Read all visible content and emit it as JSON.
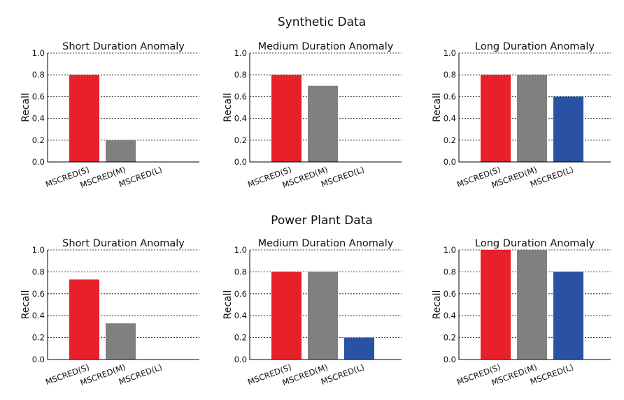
{
  "chart_data": [
    {
      "group_title": "Synthetic Data",
      "panels": [
        {
          "type": "bar",
          "title": "Short Duration Anomaly",
          "ylabel": "Recall",
          "xlabel": "",
          "categories": [
            "MSCRED(S)",
            "MSCRED(M)",
            "MSCRED(L)"
          ],
          "values": [
            0.8,
            0.2,
            0.0
          ],
          "colors": [
            "#e8202a",
            "#808080",
            "#2a52a4"
          ],
          "ylim": [
            0,
            1.0
          ],
          "yticks": [
            "0.0",
            "0.2",
            "0.4",
            "0.6",
            "0.8",
            "1.0"
          ],
          "grid": true
        },
        {
          "type": "bar",
          "title": "Medium Duration Anomaly",
          "ylabel": "Recall",
          "xlabel": "",
          "categories": [
            "MSCRED(S)",
            "MSCRED(M)",
            "MSCRED(L)"
          ],
          "values": [
            0.8,
            0.7,
            0.0
          ],
          "colors": [
            "#e8202a",
            "#808080",
            "#2a52a4"
          ],
          "ylim": [
            0,
            1.0
          ],
          "yticks": [
            "0.0",
            "0.2",
            "0.4",
            "0.6",
            "0.8",
            "1.0"
          ],
          "grid": true
        },
        {
          "type": "bar",
          "title": "Long Duration Anomaly",
          "ylabel": "Recall",
          "xlabel": "",
          "categories": [
            "MSCRED(S)",
            "MSCRED(M)",
            "MSCRED(L)"
          ],
          "values": [
            0.8,
            0.8,
            0.6
          ],
          "colors": [
            "#e8202a",
            "#808080",
            "#2a52a4"
          ],
          "ylim": [
            0,
            1.0
          ],
          "yticks": [
            "0.0",
            "0.2",
            "0.4",
            "0.6",
            "0.8",
            "1.0"
          ],
          "grid": true
        }
      ]
    },
    {
      "group_title": "Power Plant Data",
      "panels": [
        {
          "type": "bar",
          "title": "Short Duration Anomaly",
          "ylabel": "Recall",
          "xlabel": "",
          "categories": [
            "MSCRED(S)",
            "MSCRED(M)",
            "MSCRED(L)"
          ],
          "values": [
            0.73,
            0.33,
            0.0
          ],
          "colors": [
            "#e8202a",
            "#808080",
            "#2a52a4"
          ],
          "ylim": [
            0,
            1.0
          ],
          "yticks": [
            "0.0",
            "0.2",
            "0.4",
            "0.6",
            "0.8",
            "1.0"
          ],
          "grid": true
        },
        {
          "type": "bar",
          "title": "Medium Duration Anomaly",
          "ylabel": "Recall",
          "xlabel": "",
          "categories": [
            "MSCRED(S)",
            "MSCRED(M)",
            "MSCRED(L)"
          ],
          "values": [
            0.8,
            0.8,
            0.2
          ],
          "colors": [
            "#e8202a",
            "#808080",
            "#2a52a4"
          ],
          "ylim": [
            0,
            1.0
          ],
          "yticks": [
            "0.0",
            "0.2",
            "0.4",
            "0.6",
            "0.8",
            "1.0"
          ],
          "grid": true
        },
        {
          "type": "bar",
          "title": "Long Duration Anomaly",
          "ylabel": "Recall",
          "xlabel": "",
          "categories": [
            "MSCRED(S)",
            "MSCRED(M)",
            "MSCRED(L)"
          ],
          "values": [
            1.0,
            1.0,
            0.8
          ],
          "colors": [
            "#e8202a",
            "#808080",
            "#2a52a4"
          ],
          "ylim": [
            0,
            1.0
          ],
          "yticks": [
            "0.0",
            "0.2",
            "0.4",
            "0.6",
            "0.8",
            "1.0"
          ],
          "grid": true
        }
      ]
    }
  ]
}
